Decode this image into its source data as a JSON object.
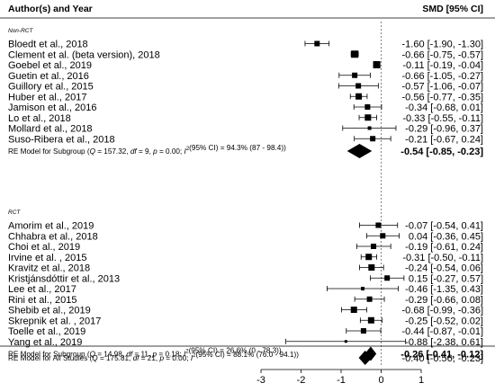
{
  "chart_data": {
    "type": "forest",
    "header": {
      "left": "Author(s) and Year",
      "right": "SMD [95% CI]"
    },
    "xlim": [
      -3,
      1
    ],
    "x_ticks": [
      {
        "value": -3,
        "label": "-3"
      },
      {
        "value": -2,
        "label": "-2"
      },
      {
        "value": -1,
        "label": "-1"
      },
      {
        "value": 0,
        "label": "0"
      },
      {
        "value": 1,
        "label": "1"
      }
    ],
    "reference_line": 0,
    "subgroups": [
      {
        "label": "Non-RCT",
        "studies": [
          {
            "name": "Bloedt et al., 2018",
            "est": -1.6,
            "lo": -1.9,
            "hi": -1.3,
            "ci_text": "-1.60 [-1.90, -1.30]",
            "w": 6
          },
          {
            "name": "Clement et al. (beta version), 2018",
            "est": -0.66,
            "lo": -0.75,
            "hi": -0.57,
            "ci_text": "-0.66 [-0.75, -0.57]",
            "w": 8
          },
          {
            "name": "Goebel et al., 2019",
            "est": -0.11,
            "lo": -0.19,
            "hi": -0.04,
            "ci_text": "-0.11 [-0.19, -0.04]",
            "w": 8
          },
          {
            "name": "Guetin et al., 2016",
            "est": -0.66,
            "lo": -1.05,
            "hi": -0.27,
            "ci_text": "-0.66 [-1.05, -0.27]",
            "w": 6
          },
          {
            "name": "Guillory et al., 2015",
            "est": -0.57,
            "lo": -1.06,
            "hi": -0.07,
            "ci_text": "-0.57 [-1.06, -0.07]",
            "w": 6
          },
          {
            "name": "Huber et al., 2017",
            "est": -0.56,
            "lo": -0.77,
            "hi": -0.35,
            "ci_text": "-0.56 [-0.77, -0.35]",
            "w": 7
          },
          {
            "name": "Jamison et al., 2016",
            "est": -0.34,
            "lo": -0.68,
            "hi": 0.01,
            "ci_text": "-0.34 [-0.68, 0.01]",
            "w": 6
          },
          {
            "name": "Lo et al., 2018",
            "est": -0.33,
            "lo": -0.55,
            "hi": -0.11,
            "ci_text": "-0.33 [-0.55, -0.11]",
            "w": 7
          },
          {
            "name": "Mollard et al., 2018",
            "est": -0.29,
            "lo": -0.96,
            "hi": 0.37,
            "ci_text": "-0.29 [-0.96, 0.37]",
            "w": 4
          },
          {
            "name": "Suso-Ribera et al., 2018",
            "est": -0.21,
            "lo": -0.67,
            "hi": 0.24,
            "ci_text": "-0.21 [-0.67, 0.24]",
            "w": 6
          }
        ],
        "model": {
          "prefix": "RE Model for Subgroup (",
          "q_label": "Q",
          "q_value": " = 157.32, ",
          "df_label": "df",
          "df_value": " = 9, ",
          "p_label": "p",
          "p_value": " = 0.00; ",
          "i_label": "I",
          "i_sup": "2",
          "i_value": "(95% CI) = 94.3% (87 - 98.4))",
          "est": -0.54,
          "lo": -0.85,
          "hi": -0.23,
          "ci_text": "-0.54 [-0.85, -0.23]"
        }
      },
      {
        "label": "RCT",
        "studies": [
          {
            "name": "Amorim et al., 2019",
            "est": -0.07,
            "lo": -0.54,
            "hi": 0.41,
            "ci_text": "-0.07 [-0.54, 0.41]",
            "w": 6
          },
          {
            "name": "Chhabra et al., 2018",
            "est": 0.04,
            "lo": -0.36,
            "hi": 0.45,
            "ci_text": "0.04 [-0.36, 0.45]",
            "w": 6
          },
          {
            "name": "Choi et al., 2019",
            "est": -0.19,
            "lo": -0.61,
            "hi": 0.24,
            "ci_text": "-0.19 [-0.61, 0.24]",
            "w": 6
          },
          {
            "name": "Irvine et al. , 2015",
            "est": -0.31,
            "lo": -0.5,
            "hi": -0.11,
            "ci_text": "-0.31 [-0.50, -0.11]",
            "w": 7
          },
          {
            "name": "Kravitz et al., 2018",
            "est": -0.24,
            "lo": -0.54,
            "hi": 0.06,
            "ci_text": "-0.24 [-0.54, 0.06]",
            "w": 7
          },
          {
            "name": "Kristjánsdóttir et al., 2013",
            "est": 0.15,
            "lo": -0.27,
            "hi": 0.57,
            "ci_text": "0.15 [-0.27, 0.57]",
            "w": 6
          },
          {
            "name": "Lee et al., 2017",
            "est": -0.46,
            "lo": -1.35,
            "hi": 0.43,
            "ci_text": "-0.46 [-1.35, 0.43]",
            "w": 4
          },
          {
            "name": "Rini et al., 2015",
            "est": -0.29,
            "lo": -0.66,
            "hi": 0.08,
            "ci_text": "-0.29 [-0.66, 0.08]",
            "w": 6
          },
          {
            "name": "Shebib et al., 2019",
            "est": -0.68,
            "lo": -0.99,
            "hi": -0.36,
            "ci_text": "-0.68 [-0.99, -0.36]",
            "w": 7
          },
          {
            "name": "Skrepnik et al. , 2017",
            "est": -0.25,
            "lo": -0.52,
            "hi": 0.02,
            "ci_text": "-0.25 [-0.52, 0.02]",
            "w": 7
          },
          {
            "name": "Toelle et al., 2019",
            "est": -0.44,
            "lo": -0.87,
            "hi": -0.01,
            "ci_text": "-0.44 [-0.87, -0.01]",
            "w": 6
          },
          {
            "name": "Yang et al., 2019",
            "est": -0.88,
            "lo": -2.38,
            "hi": 0.61,
            "ci_text": "-0.88 [-2.38, 0.61]",
            "w": 3
          }
        ],
        "model": {
          "prefix": "RE Model for Subgroup (",
          "q_label": "Q",
          "q_value": " = 14.98, ",
          "df_label": "df",
          "df_value": " = 11, ",
          "p_label": "p",
          "p_value": " = 0.18; ",
          "i_label": "I",
          "i_sup": "2",
          "i_value": "(95% CI) = 26.6% (0 - 78.3))",
          "est": -0.26,
          "lo": -0.41,
          "hi": -0.12,
          "ci_text": "-0.26 [-0.41, -0.12]"
        }
      }
    ],
    "overall": {
      "prefix": "RE Model for All Studies (",
      "q_label": "Q",
      "q_value": " = 175.81, ",
      "df_label": "df",
      "df_value": " = 21, ",
      "p_label": "p",
      "p_value": " = 0.00; ",
      "i_label": "I",
      "i_sup": "2",
      "i_value": "(95% CI) = 88.1% (76.0 - 94.1))",
      "est": -0.4,
      "lo": -0.56,
      "hi": -0.23,
      "ci_text": "-0.40 [-0.56, -0.23]"
    }
  }
}
